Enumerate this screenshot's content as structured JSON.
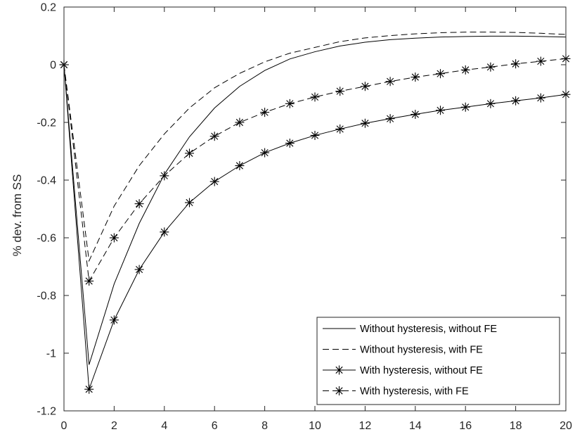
{
  "chart_data": {
    "type": "line",
    "title": "",
    "xlabel": "",
    "ylabel": "% dev. from SS",
    "xlim": [
      0,
      20
    ],
    "ylim": [
      -1.2,
      0.2
    ],
    "xticks": [
      0,
      2,
      4,
      6,
      8,
      10,
      12,
      14,
      16,
      18,
      20
    ],
    "xtick_labels": [
      "0",
      "2",
      "4",
      "6",
      "8",
      "10",
      "12",
      "14",
      "16",
      "18",
      "20"
    ],
    "yticks": [
      0.2,
      0,
      -0.2,
      -0.4,
      -0.6,
      -0.8,
      -1,
      -1.2
    ],
    "ytick_labels": [
      "0.2",
      "0",
      "-0.2",
      "-0.4",
      "-0.6",
      "-0.8",
      "-1",
      "-1.2"
    ],
    "grid": false,
    "legend_position": "bottom-right",
    "x": [
      0,
      1,
      2,
      3,
      4,
      5,
      6,
      7,
      8,
      9,
      10,
      11,
      12,
      13,
      14,
      15,
      16,
      17,
      18,
      19,
      20
    ],
    "series": [
      {
        "name": "Without hysteresis, without FE",
        "style": "solid",
        "marker": "none",
        "values": [
          0,
          -1.04,
          -0.76,
          -0.55,
          -0.38,
          -0.25,
          -0.15,
          -0.075,
          -0.02,
          0.02,
          0.045,
          0.065,
          0.078,
          0.087,
          0.092,
          0.096,
          0.098,
          0.099,
          0.099,
          0.098,
          0.096
        ]
      },
      {
        "name": "Without hysteresis, with FE",
        "style": "dashed",
        "marker": "none",
        "values": [
          0,
          -0.68,
          -0.49,
          -0.35,
          -0.24,
          -0.15,
          -0.08,
          -0.03,
          0.01,
          0.04,
          0.06,
          0.08,
          0.093,
          0.101,
          0.107,
          0.111,
          0.113,
          0.113,
          0.112,
          0.109,
          0.105
        ]
      },
      {
        "name": "With hysteresis, without FE",
        "style": "solid",
        "marker": "asterisk",
        "values": [
          0,
          -1.125,
          -0.885,
          -0.71,
          -0.58,
          -0.478,
          -0.405,
          -0.35,
          -0.305,
          -0.272,
          -0.245,
          -0.223,
          -0.203,
          -0.187,
          -0.172,
          -0.158,
          -0.147,
          -0.135,
          -0.125,
          -0.115,
          -0.103
        ]
      },
      {
        "name": "With hysteresis, with FE",
        "style": "dashed",
        "marker": "asterisk",
        "values": [
          0,
          -0.75,
          -0.6,
          -0.482,
          -0.385,
          -0.307,
          -0.248,
          -0.2,
          -0.165,
          -0.135,
          -0.112,
          -0.092,
          -0.075,
          -0.058,
          -0.043,
          -0.031,
          -0.018,
          -0.008,
          0.003,
          0.012,
          0.021
        ]
      }
    ]
  }
}
